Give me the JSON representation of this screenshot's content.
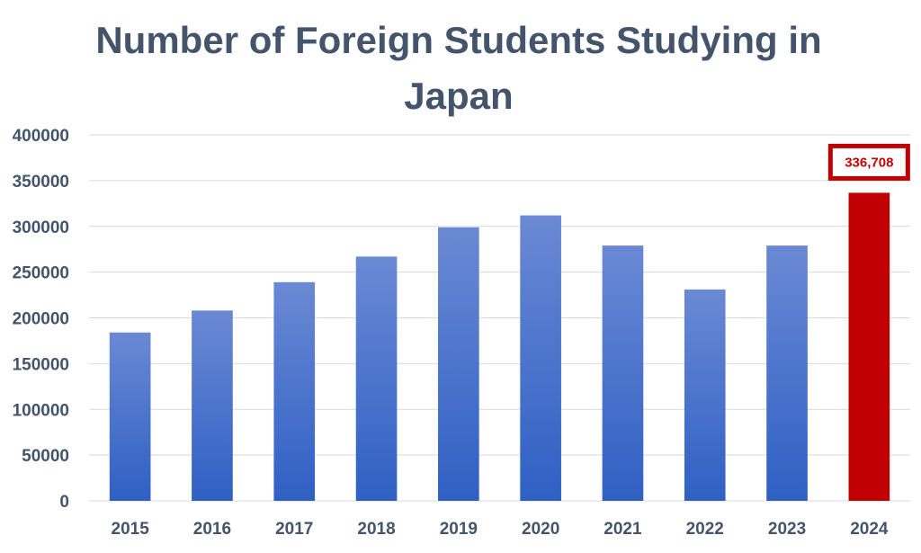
{
  "chart_data": {
    "type": "bar",
    "title": "Number of Foreign Students Studying in Japan",
    "xlabel": "",
    "ylabel": "",
    "categories": [
      "2015",
      "2016",
      "2017",
      "2018",
      "2019",
      "2020",
      "2021",
      "2022",
      "2023",
      "2024"
    ],
    "values": [
      184000,
      208000,
      239000,
      267000,
      299000,
      312000,
      279000,
      231000,
      279000,
      336708
    ],
    "ylim": [
      0,
      400000
    ],
    "yticks": [
      "0",
      "50000",
      "100000",
      "150000",
      "200000",
      "250000",
      "300000",
      "350000",
      "400000"
    ],
    "grid": true,
    "legend": "none",
    "annotations": [
      {
        "category": "2024",
        "text": "336,708"
      }
    ],
    "colors": {
      "bar_top": "#6a89d4",
      "bar_bottom": "#2f60c4",
      "highlight": "#c00000",
      "grid": "#d9d9d9",
      "text": "#44546a"
    },
    "highlight_category": "2024"
  }
}
